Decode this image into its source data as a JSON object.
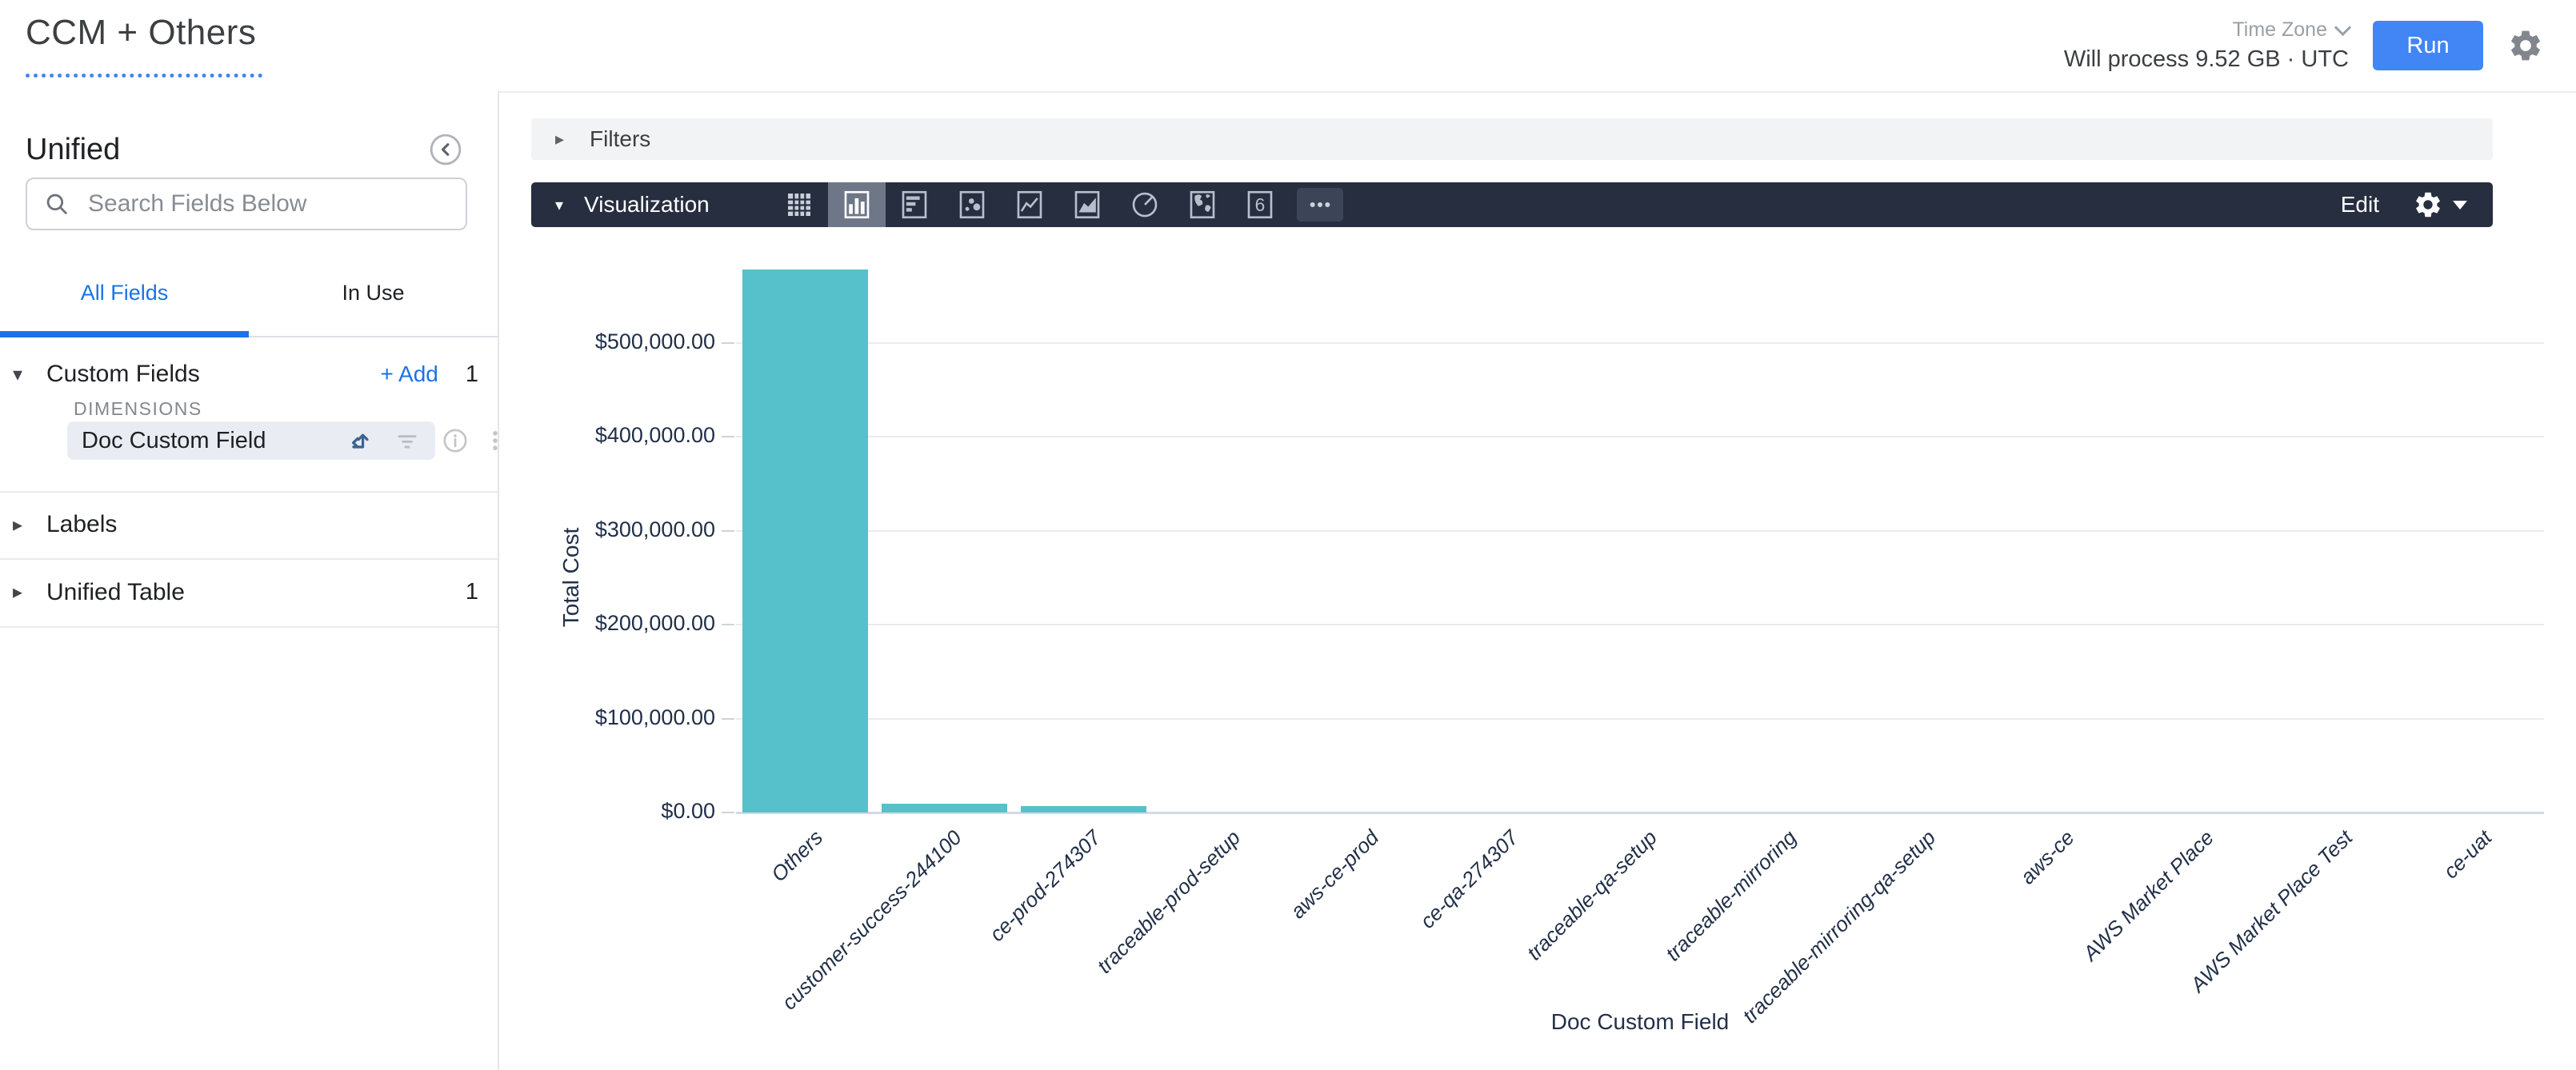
{
  "header": {
    "title": "CCM + Others",
    "time_zone_label": "Time Zone",
    "process_text": "Will process 9.52 GB · UTC",
    "run_label": "Run",
    "accent_color": "#4285f4"
  },
  "sidebar": {
    "view_title": "Unified",
    "search_placeholder": "Search Fields Below",
    "tabs": [
      {
        "label": "All Fields",
        "active": true
      },
      {
        "label": "In Use",
        "active": false
      }
    ],
    "custom_fields": {
      "label": "Custom Fields",
      "add_label": "+ Add",
      "count": "1",
      "group_label": "DIMENSIONS",
      "fields": [
        {
          "name": "Doc Custom Field",
          "icons": [
            "pivot-icon",
            "filter-icon",
            "info-icon",
            "kebab-menu-icon"
          ]
        }
      ]
    },
    "sections": [
      {
        "label": "Labels",
        "count": ""
      },
      {
        "label": "Unified Table",
        "count": "1"
      }
    ]
  },
  "main": {
    "filters_label": "Filters",
    "visualization": {
      "label": "Visualization",
      "edit_label": "Edit",
      "types": [
        {
          "name": "table",
          "selected": false
        },
        {
          "name": "column-chart",
          "selected": true
        },
        {
          "name": "bar-chart",
          "selected": false
        },
        {
          "name": "scatter-plot",
          "selected": false
        },
        {
          "name": "line-chart",
          "selected": false
        },
        {
          "name": "area-chart",
          "selected": false
        },
        {
          "name": "pie-chart",
          "selected": false
        },
        {
          "name": "map",
          "selected": false
        },
        {
          "name": "single-value",
          "selected": false
        },
        {
          "name": "more-options",
          "selected": false
        }
      ]
    }
  },
  "chart_data": {
    "type": "bar",
    "title": "",
    "xlabel": "Doc Custom Field",
    "ylabel": "Total Cost",
    "categories": [
      "Others",
      "customer-success-244100",
      "ce-prod-274307",
      "traceable-prod-setup",
      "aws-ce-prod",
      "ce-qa-274307",
      "traceable-qa-setup",
      "traceable-mirroring",
      "traceable-mirroring-qa-setup",
      "aws-ce",
      "AWS Market Place",
      "AWS Market Place Test",
      "ce-uat"
    ],
    "values": [
      578000,
      9000,
      7000,
      0,
      0,
      0,
      0,
      0,
      0,
      0,
      0,
      0,
      0
    ],
    "yticks": [
      {
        "value": 0,
        "label": "$0.00"
      },
      {
        "value": 100000,
        "label": "$100,000.00"
      },
      {
        "value": 200000,
        "label": "$200,000.00"
      },
      {
        "value": 300000,
        "label": "$300,000.00"
      },
      {
        "value": 400000,
        "label": "$400,000.00"
      },
      {
        "value": 500000,
        "label": "$500,000.00"
      }
    ],
    "ylim": [
      0,
      590000
    ],
    "grid": true,
    "legend": false,
    "x_label_rotation": -45,
    "bar_color": "#57c1cb"
  }
}
